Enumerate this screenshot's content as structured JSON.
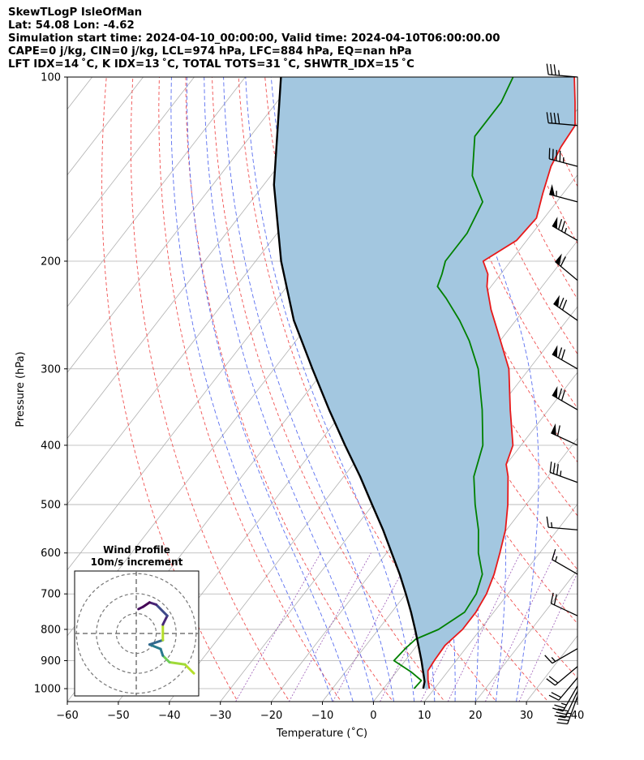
{
  "header": {
    "line1": "SkewTLogP IsleOfMan",
    "line2": "Lat: 54.08   Lon: -4.62",
    "line3": "Simulation start time: 2024-04-10_00:00:00, Valid time: 2024-04-10T06:00:00.00",
    "line4": "CAPE=0 j/kg, CIN=0 j/kg, LCL=974 hPa, LFC=884 hPa, EQ=nan hPa",
    "line5": "LFT IDX=14 ˚C, K IDX=13 ˚C, TOTAL TOTS=31 ˚C, SHWTR_IDX=15 ˚C"
  },
  "chart_data": {
    "type": "line",
    "xlabel": "Temperature (˚C)",
    "ylabel": "Pressure (hPa)",
    "xlim": [
      -60,
      40
    ],
    "ylim": [
      1050,
      100
    ],
    "y_scale": "log",
    "skew": "skew-T",
    "grid": true,
    "x_ticks": [
      "−60",
      "−50",
      "−40",
      "−30",
      "−20",
      "−10",
      "0",
      "10",
      "20",
      "30",
      "40"
    ],
    "y_ticks": [
      {
        "p": 1000,
        "label": "1000"
      },
      {
        "p": 900,
        "label": "900"
      },
      {
        "p": 800,
        "label": "800"
      },
      {
        "p": 700,
        "label": "700"
      },
      {
        "p": 600,
        "label": "600"
      },
      {
        "p": 500,
        "label": "500"
      },
      {
        "p": 400,
        "label": "400"
      },
      {
        "p": 300,
        "label": "300"
      },
      {
        "p": 200,
        "label": "200"
      },
      {
        "p": 100,
        "label": "100"
      }
    ],
    "series": [
      {
        "role": "temperature",
        "color": "#e8191a",
        "points": [
          [
            1000,
            9.0
          ],
          [
            970,
            7.5
          ],
          [
            935,
            6.0
          ],
          [
            900,
            5.7
          ],
          [
            850,
            5.5
          ],
          [
            800,
            6.5
          ],
          [
            750,
            6.5
          ],
          [
            700,
            5.8
          ],
          [
            650,
            4.3
          ],
          [
            600,
            2.2
          ],
          [
            550,
            -0.2
          ],
          [
            500,
            -3.6
          ],
          [
            450,
            -7.8
          ],
          [
            430,
            -10.0
          ],
          [
            400,
            -11.6
          ],
          [
            350,
            -17.5
          ],
          [
            300,
            -24.0
          ],
          [
            260,
            -32.0
          ],
          [
            240,
            -36.5
          ],
          [
            220,
            -40.8
          ],
          [
            210,
            -42.5
          ],
          [
            200,
            -45.4
          ],
          [
            185,
            -42.0
          ],
          [
            170,
            -41.5
          ],
          [
            155,
            -44.0
          ],
          [
            140,
            -46.5
          ],
          [
            130,
            -47.5
          ],
          [
            120,
            -48.0
          ],
          [
            110,
            -51.5
          ],
          [
            100,
            -55.5
          ]
        ]
      },
      {
        "role": "dewpoint",
        "color": "#008000",
        "points": [
          [
            1000,
            6.0
          ],
          [
            970,
            6.2
          ],
          [
            940,
            3.0
          ],
          [
            900,
            -2.2
          ],
          [
            860,
            -1.8
          ],
          [
            830,
            -1.2
          ],
          [
            800,
            1.8
          ],
          [
            750,
            4.3
          ],
          [
            700,
            3.8
          ],
          [
            650,
            2.0
          ],
          [
            600,
            -2.0
          ],
          [
            550,
            -5.5
          ],
          [
            500,
            -10.0
          ],
          [
            450,
            -14.5
          ],
          [
            400,
            -17.5
          ],
          [
            350,
            -23.0
          ],
          [
            300,
            -30.0
          ],
          [
            270,
            -36.0
          ],
          [
            250,
            -41.0
          ],
          [
            230,
            -47.0
          ],
          [
            220,
            -50.5
          ],
          [
            210,
            -51.5
          ],
          [
            200,
            -52.8
          ],
          [
            180,
            -52.8
          ],
          [
            160,
            -54.5
          ],
          [
            145,
            -60.5
          ],
          [
            125,
            -66.0
          ],
          [
            110,
            -66.0
          ],
          [
            100,
            -67.5
          ]
        ]
      },
      {
        "role": "parcel",
        "color": "#000000",
        "points": [
          [
            1000,
            7.8
          ],
          [
            974,
            7.0
          ],
          [
            950,
            5.8
          ],
          [
            900,
            3.2
          ],
          [
            850,
            0.3
          ],
          [
            800,
            -2.8
          ],
          [
            750,
            -6.2
          ],
          [
            700,
            -10.0
          ],
          [
            650,
            -14.2
          ],
          [
            600,
            -19.0
          ],
          [
            550,
            -24.2
          ],
          [
            500,
            -30.2
          ],
          [
            450,
            -36.8
          ],
          [
            400,
            -44.5
          ],
          [
            350,
            -53.0
          ],
          [
            300,
            -62.5
          ],
          [
            250,
            -73.5
          ],
          [
            200,
            -85.0
          ],
          [
            150,
            -98.0
          ],
          [
            100,
            -113.0
          ]
        ]
      }
    ],
    "cape_fill_color": "#a3c7e0",
    "wind_barbs": [
      {
        "p": 100,
        "spd": 35,
        "dir": 275
      },
      {
        "p": 120,
        "spd": 40,
        "dir": 275
      },
      {
        "p": 140,
        "spd": 45,
        "dir": 285
      },
      {
        "p": 160,
        "spd": 55,
        "dir": 285
      },
      {
        "p": 185,
        "spd": 75,
        "dir": 300
      },
      {
        "p": 215,
        "spd": 60,
        "dir": 310
      },
      {
        "p": 250,
        "spd": 70,
        "dir": 305
      },
      {
        "p": 300,
        "spd": 70,
        "dir": 300
      },
      {
        "p": 350,
        "spd": 70,
        "dir": 300
      },
      {
        "p": 400,
        "spd": 60,
        "dir": 295
      },
      {
        "p": 460,
        "spd": 35,
        "dir": 290
      },
      {
        "p": 550,
        "spd": 15,
        "dir": 275
      },
      {
        "p": 650,
        "spd": 15,
        "dir": 300
      },
      {
        "p": 760,
        "spd": 20,
        "dir": 295
      },
      {
        "p": 860,
        "spd": 15,
        "dir": 240
      },
      {
        "p": 920,
        "spd": 20,
        "dir": 230
      },
      {
        "p": 960,
        "spd": 20,
        "dir": 220
      },
      {
        "p": 990,
        "spd": 25,
        "dir": 210
      },
      {
        "p": 1010,
        "spd": 30,
        "dir": 205
      },
      {
        "p": 1030,
        "spd": 35,
        "dir": 200
      }
    ],
    "hodograph": {
      "title": "Wind Profile",
      "subtitle": "10m/s increment",
      "range": 14,
      "rings": [
        4.5,
        9,
        13.5
      ],
      "points": [
        [
          13,
          -9
        ],
        [
          11,
          -7
        ],
        [
          7.5,
          -6.5
        ],
        [
          6,
          -5
        ],
        [
          5.5,
          -3.5
        ],
        [
          3,
          -2.5
        ],
        [
          6,
          -1.5
        ],
        [
          6,
          2
        ],
        [
          7,
          4
        ],
        [
          4.5,
          6.5
        ],
        [
          3,
          7
        ],
        [
          1.5,
          6
        ],
        [
          0.5,
          5.5
        ]
      ],
      "colors": [
        "#b5de2b",
        "#a0da39",
        "#6ece58",
        "#2a788e",
        "#287c8e",
        "#31688e",
        "#b5de2b",
        "#482878",
        "#3e4989",
        "#482475",
        "#440154",
        "#460b5e",
        "#440154"
      ]
    }
  }
}
